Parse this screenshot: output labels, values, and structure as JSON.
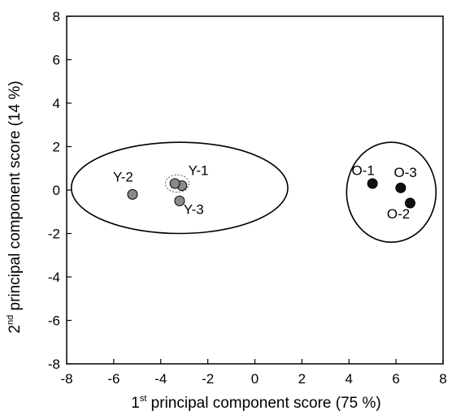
{
  "chart_data": {
    "type": "scatter",
    "title": "",
    "xlabel": {
      "prefix": "1",
      "sup": "st",
      "text": " principal component score (75 %)"
    },
    "ylabel": {
      "prefix": "2",
      "sup": "nd",
      "text": " principal component score (14 %)"
    },
    "xlim": [
      -8,
      8
    ],
    "ylim": [
      -8,
      8
    ],
    "xticks": [
      -8,
      -6,
      -4,
      -2,
      0,
      2,
      4,
      6,
      8
    ],
    "yticks": [
      -8,
      -6,
      -4,
      -2,
      0,
      2,
      4,
      6,
      8
    ],
    "grid": false,
    "legend": "none",
    "series": [
      {
        "group": "Y",
        "color": "#8a8a8a",
        "points": [
          {
            "label": "Y-1",
            "x": -3.1,
            "y": 0.2
          },
          {
            "label": "Y-1",
            "x": -3.4,
            "y": 0.3
          },
          {
            "label": "Y-2",
            "x": -5.2,
            "y": -0.2
          },
          {
            "label": "Y-3",
            "x": -3.2,
            "y": -0.5
          }
        ]
      },
      {
        "group": "O",
        "color": "#111111",
        "points": [
          {
            "label": "O-1",
            "x": 5.0,
            "y": 0.3
          },
          {
            "label": "O-3",
            "x": 6.2,
            "y": 0.1
          },
          {
            "label": "O-2",
            "x": 6.6,
            "y": -0.6
          }
        ]
      }
    ],
    "annotations": [
      {
        "text": "Y-1",
        "x": -2.4,
        "y": 0.7
      },
      {
        "text": "Y-2",
        "x": -5.6,
        "y": 0.4
      },
      {
        "text": "Y-3",
        "x": -2.6,
        "y": -1.1
      },
      {
        "text": "O-1",
        "x": 4.6,
        "y": 0.7
      },
      {
        "text": "O-3",
        "x": 6.4,
        "y": 0.6
      },
      {
        "text": "O-2",
        "x": 6.1,
        "y": -1.3
      }
    ],
    "ellipses": [
      {
        "group": "Y",
        "cx": -3.2,
        "cy": 0.1,
        "rx": 4.6,
        "ry": 2.1
      },
      {
        "group": "O",
        "cx": 5.8,
        "cy": -0.1,
        "rx": 1.9,
        "ry": 2.3
      },
      {
        "group": "Y-1 replicate",
        "cx": -3.3,
        "cy": 0.3,
        "rx": 0.5,
        "ry": 0.4,
        "dotted": true
      }
    ]
  }
}
